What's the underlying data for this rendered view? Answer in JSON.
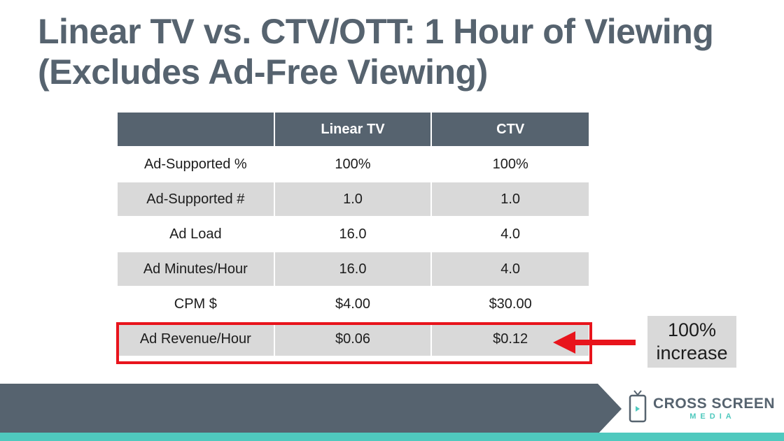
{
  "title": {
    "line1": "Linear TV vs. CTV/OTT: 1 Hour of Viewing",
    "line2": "(Excludes Ad-Free Viewing)"
  },
  "table": {
    "headers": [
      "",
      "Linear TV",
      "CTV"
    ],
    "rows": [
      [
        "Ad-Supported %",
        "100%",
        "100%"
      ],
      [
        "Ad-Supported #",
        "1.0",
        "1.0"
      ],
      [
        "Ad Load",
        "16.0",
        "4.0"
      ],
      [
        "Ad Minutes/Hour",
        "16.0",
        "4.0"
      ],
      [
        "CPM $",
        "$4.00",
        "$30.00"
      ],
      [
        "Ad Revenue/Hour",
        "$0.06",
        "$0.12"
      ]
    ]
  },
  "callout": {
    "line1": "100%",
    "line2": "increase"
  },
  "logo": {
    "name": "CROSS SCREEN",
    "sub": "MEDIA"
  },
  "colors": {
    "header_bg": "#56636f",
    "alt_row_bg": "#d9d9d9",
    "highlight_red": "#e8141c",
    "accent_teal": "#4fc9be"
  }
}
